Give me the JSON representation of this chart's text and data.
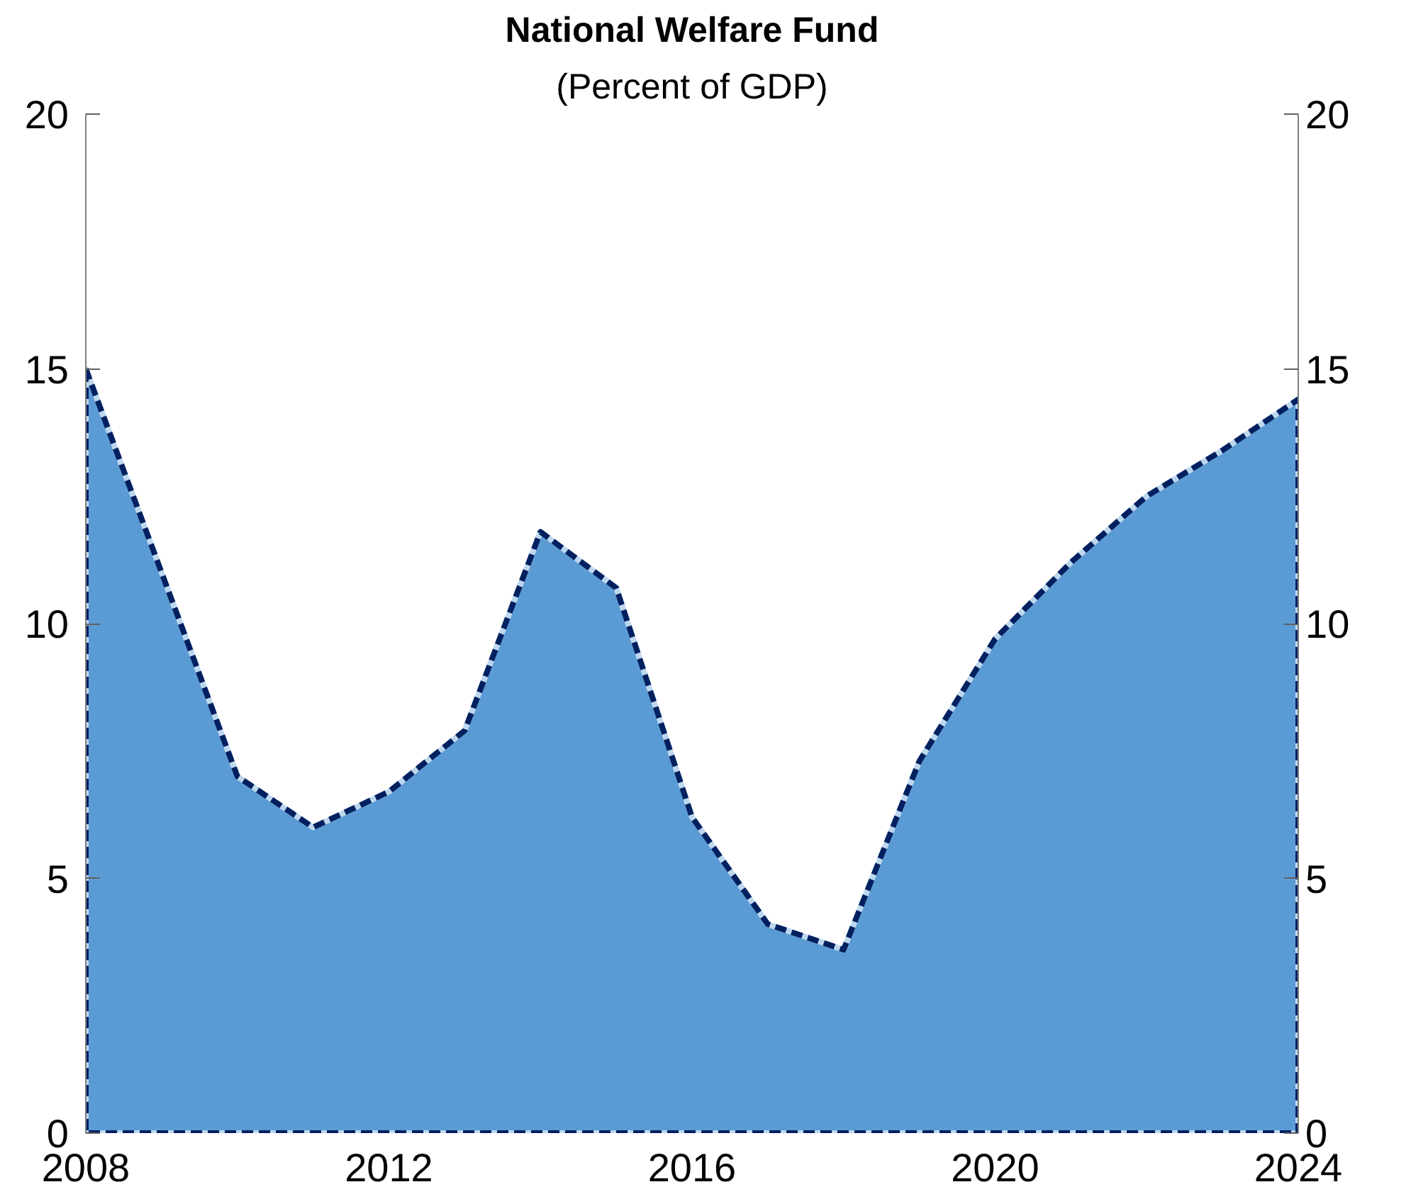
{
  "chart_data": {
    "type": "area",
    "title": "National Welfare Fund",
    "subtitle": "(Percent of GDP)",
    "x": [
      2008,
      2009,
      2010,
      2011,
      2012,
      2013,
      2014,
      2015,
      2016,
      2017,
      2018,
      2019,
      2020,
      2021,
      2022,
      2023,
      2024
    ],
    "series": [
      {
        "color": "#5b9bd5",
        "values": [
          15.0,
          11.0,
          7.0,
          6.0,
          6.7,
          7.9,
          11.8,
          10.7,
          6.2,
          4.1,
          3.6,
          7.3,
          9.7,
          11.2,
          12.5,
          13.4,
          14.4
        ]
      }
    ],
    "xlim": [
      2008,
      2024
    ],
    "xticks": [
      2008,
      2012,
      2016,
      2020,
      2024
    ],
    "ylim": [
      0,
      20
    ],
    "yticks": [
      0,
      5,
      10,
      15,
      20
    ],
    "y2lim": [
      0,
      20
    ],
    "y2ticks": [
      0,
      5,
      10,
      15,
      20
    ],
    "line_style": "dashed",
    "grid": false
  }
}
